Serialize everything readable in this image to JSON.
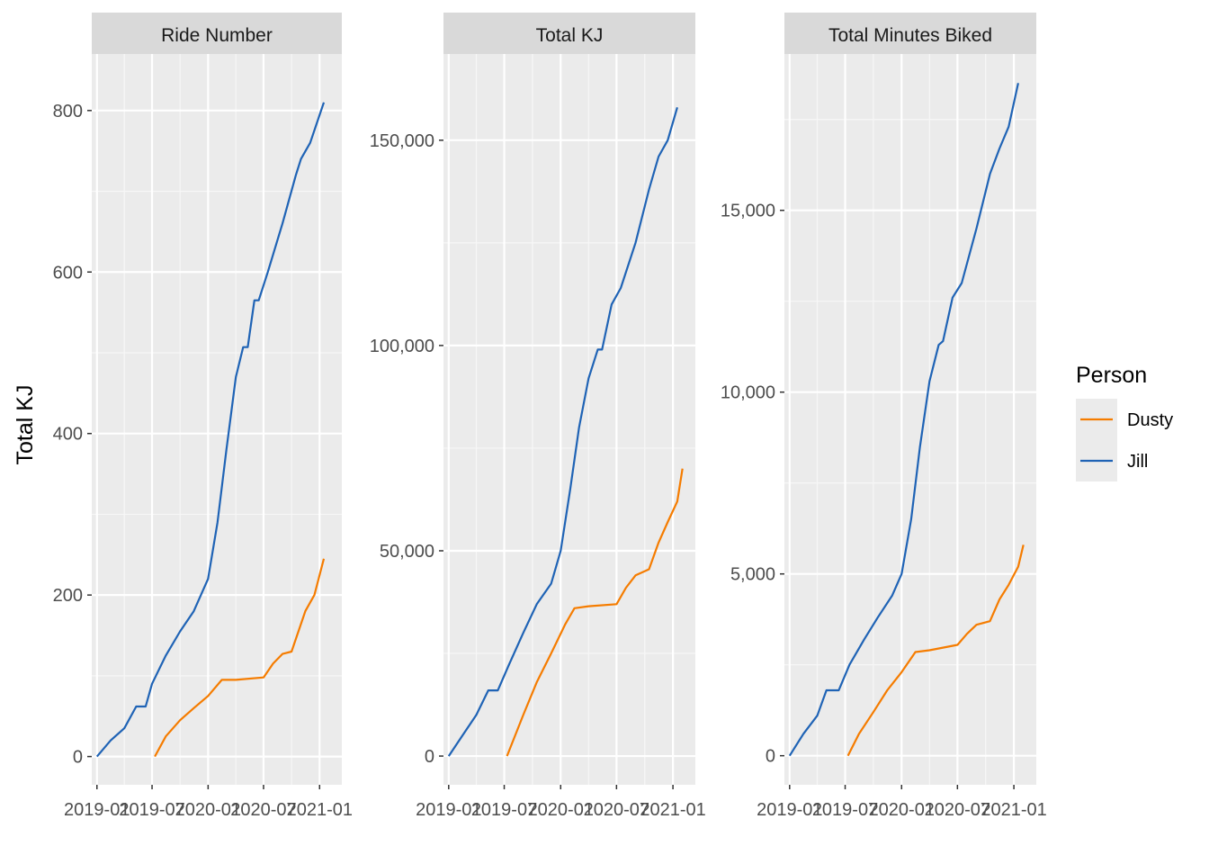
{
  "ylabel": "Total KJ",
  "legend": {
    "title": "Person",
    "placement": "right",
    "items": [
      {
        "name": "Dusty",
        "color": "#F57C00"
      },
      {
        "name": "Jill",
        "color": "#1F63B5"
      }
    ]
  },
  "x_tick_labels": [
    "2019-01",
    "2019-07",
    "2020-01",
    "2020-07",
    "2021-01"
  ],
  "chart_data": [
    {
      "type": "line",
      "title": "Ride Number",
      "xlabel": "",
      "ylabel": "Total KJ",
      "xlim": [
        "2018-12-15",
        "2021-03-15"
      ],
      "ylim": [
        -35,
        870
      ],
      "y_ticks": [
        0,
        200,
        400,
        600,
        800
      ],
      "y_tick_labels": [
        "0",
        "200",
        "400",
        "600",
        "800"
      ],
      "grid": true,
      "series": [
        {
          "name": "Jill",
          "color": "#1F63B5",
          "points": [
            [
              "2019-01-01",
              0
            ],
            [
              "2019-02-15",
              20
            ],
            [
              "2019-04-01",
              35
            ],
            [
              "2019-05-10",
              62
            ],
            [
              "2019-06-10",
              62
            ],
            [
              "2019-07-01",
              90
            ],
            [
              "2019-08-15",
              125
            ],
            [
              "2019-10-01",
              155
            ],
            [
              "2019-11-15",
              180
            ],
            [
              "2020-01-01",
              220
            ],
            [
              "2020-02-01",
              290
            ],
            [
              "2020-03-01",
              380
            ],
            [
              "2020-04-01",
              470
            ],
            [
              "2020-04-25",
              507
            ],
            [
              "2020-05-10",
              507
            ],
            [
              "2020-06-01",
              565
            ],
            [
              "2020-06-15",
              565
            ],
            [
              "2020-07-15",
              600
            ],
            [
              "2020-09-01",
              660
            ],
            [
              "2020-10-15",
              720
            ],
            [
              "2020-11-01",
              740
            ],
            [
              "2020-12-01",
              760
            ],
            [
              "2021-01-15",
              810
            ]
          ]
        },
        {
          "name": "Dusty",
          "color": "#F57C00",
          "points": [
            [
              "2019-07-10",
              0
            ],
            [
              "2019-08-15",
              25
            ],
            [
              "2019-10-01",
              45
            ],
            [
              "2019-11-15",
              60
            ],
            [
              "2020-01-01",
              75
            ],
            [
              "2020-02-15",
              95
            ],
            [
              "2020-04-01",
              95
            ],
            [
              "2020-07-01",
              98
            ],
            [
              "2020-08-01",
              115
            ],
            [
              "2020-09-01",
              127
            ],
            [
              "2020-10-01",
              130
            ],
            [
              "2020-11-15",
              180
            ],
            [
              "2020-12-15",
              200
            ],
            [
              "2021-01-15",
              245
            ]
          ]
        }
      ]
    },
    {
      "type": "line",
      "title": "Total KJ",
      "xlabel": "",
      "ylabel": "Total KJ",
      "xlim": [
        "2018-12-15",
        "2021-03-15"
      ],
      "ylim": [
        -7000,
        171000
      ],
      "y_ticks": [
        0,
        50000,
        100000,
        150000
      ],
      "y_tick_labels": [
        "0",
        "50,000",
        "100,000",
        "150,000"
      ],
      "grid": true,
      "series": [
        {
          "name": "Jill",
          "color": "#1F63B5",
          "points": [
            [
              "2019-01-01",
              0
            ],
            [
              "2019-02-15",
              5000
            ],
            [
              "2019-04-01",
              10000
            ],
            [
              "2019-05-10",
              16000
            ],
            [
              "2019-06-10",
              16000
            ],
            [
              "2019-07-15",
              22000
            ],
            [
              "2019-09-01",
              30000
            ],
            [
              "2019-10-15",
              37000
            ],
            [
              "2019-12-01",
              42000
            ],
            [
              "2020-01-01",
              50000
            ],
            [
              "2020-02-01",
              65000
            ],
            [
              "2020-03-01",
              80000
            ],
            [
              "2020-04-01",
              92000
            ],
            [
              "2020-05-01",
              99000
            ],
            [
              "2020-05-15",
              99000
            ],
            [
              "2020-06-15",
              110000
            ],
            [
              "2020-07-15",
              114000
            ],
            [
              "2020-09-01",
              125000
            ],
            [
              "2020-10-15",
              138000
            ],
            [
              "2020-11-15",
              146000
            ],
            [
              "2020-12-15",
              150000
            ],
            [
              "2021-01-15",
              158000
            ]
          ]
        },
        {
          "name": "Dusty",
          "color": "#F57C00",
          "points": [
            [
              "2019-07-10",
              0
            ],
            [
              "2019-09-01",
              10000
            ],
            [
              "2019-10-15",
              18000
            ],
            [
              "2019-12-01",
              25000
            ],
            [
              "2020-01-15",
              32000
            ],
            [
              "2020-02-15",
              36000
            ],
            [
              "2020-04-01",
              36500
            ],
            [
              "2020-07-01",
              37000
            ],
            [
              "2020-08-01",
              41000
            ],
            [
              "2020-09-01",
              44000
            ],
            [
              "2020-10-15",
              45500
            ],
            [
              "2020-11-15",
              52000
            ],
            [
              "2020-12-15",
              57000
            ],
            [
              "2021-01-15",
              62000
            ],
            [
              "2021-02-01",
              70000
            ]
          ]
        }
      ]
    },
    {
      "type": "line",
      "title": "Total Minutes Biked",
      "xlabel": "",
      "ylabel": "Total KJ",
      "xlim": [
        "2018-12-15",
        "2021-03-15"
      ],
      "ylim": [
        -800,
        19300
      ],
      "y_ticks": [
        0,
        5000,
        10000,
        15000
      ],
      "y_tick_labels": [
        "0",
        "5,000",
        "10,000",
        "15,000"
      ],
      "grid": true,
      "series": [
        {
          "name": "Jill",
          "color": "#1F63B5",
          "points": [
            [
              "2019-01-01",
              0
            ],
            [
              "2019-02-15",
              600
            ],
            [
              "2019-04-01",
              1100
            ],
            [
              "2019-05-01",
              1800
            ],
            [
              "2019-06-10",
              1800
            ],
            [
              "2019-07-15",
              2500
            ],
            [
              "2019-09-01",
              3200
            ],
            [
              "2019-10-15",
              3800
            ],
            [
              "2019-12-01",
              4400
            ],
            [
              "2020-01-01",
              5000
            ],
            [
              "2020-02-01",
              6500
            ],
            [
              "2020-03-01",
              8500
            ],
            [
              "2020-04-01",
              10300
            ],
            [
              "2020-05-01",
              11300
            ],
            [
              "2020-05-15",
              11400
            ],
            [
              "2020-06-15",
              12600
            ],
            [
              "2020-07-15",
              13000
            ],
            [
              "2020-09-01",
              14500
            ],
            [
              "2020-10-15",
              16000
            ],
            [
              "2020-11-15",
              16700
            ],
            [
              "2020-12-15",
              17300
            ],
            [
              "2021-01-15",
              18500
            ]
          ]
        },
        {
          "name": "Dusty",
          "color": "#F57C00",
          "points": [
            [
              "2019-07-10",
              0
            ],
            [
              "2019-08-15",
              600
            ],
            [
              "2019-10-01",
              1200
            ],
            [
              "2019-11-15",
              1800
            ],
            [
              "2020-01-01",
              2300
            ],
            [
              "2020-02-15",
              2850
            ],
            [
              "2020-04-01",
              2900
            ],
            [
              "2020-06-01",
              3000
            ],
            [
              "2020-07-01",
              3050
            ],
            [
              "2020-08-01",
              3350
            ],
            [
              "2020-09-01",
              3600
            ],
            [
              "2020-10-15",
              3700
            ],
            [
              "2020-11-15",
              4300
            ],
            [
              "2020-12-15",
              4700
            ],
            [
              "2021-01-15",
              5200
            ],
            [
              "2021-02-01",
              5800
            ]
          ]
        }
      ]
    }
  ]
}
